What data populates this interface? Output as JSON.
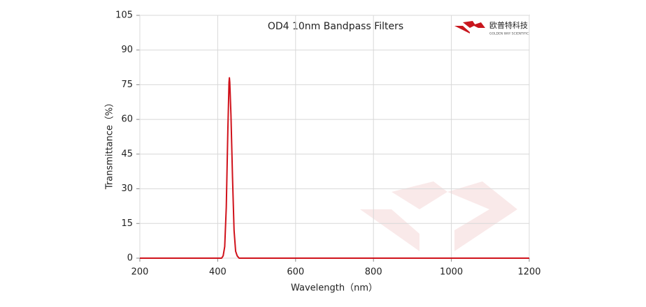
{
  "chart_data": {
    "type": "line",
    "title": "OD4 10nm Bandpass Filters",
    "x_label": "Wavelength（nm）",
    "y_label": "Transmittance（%）",
    "x": [
      200,
      410,
      414,
      418,
      422,
      426,
      429,
      430,
      431,
      434,
      438,
      442,
      446,
      450,
      455,
      1200
    ],
    "series": [
      {
        "name": "OD4 10nm Bandpass Filters",
        "color": "#d0121b",
        "values": [
          0,
          0,
          1,
          5,
          22,
          55,
          76,
          78,
          76,
          62,
          35,
          12,
          3,
          1,
          0,
          0
        ]
      }
    ],
    "xlim": [
      200,
      1200
    ],
    "xticks": [
      200,
      400,
      600,
      800,
      1000,
      1200
    ],
    "ylim": [
      0,
      105
    ],
    "yticks": [
      0,
      15,
      30,
      45,
      60,
      75,
      90,
      105
    ],
    "grid": true
  },
  "logo": {
    "name": "欧普特科技",
    "subtitle": "GOLDEN WAY SCIENTIFIC"
  }
}
